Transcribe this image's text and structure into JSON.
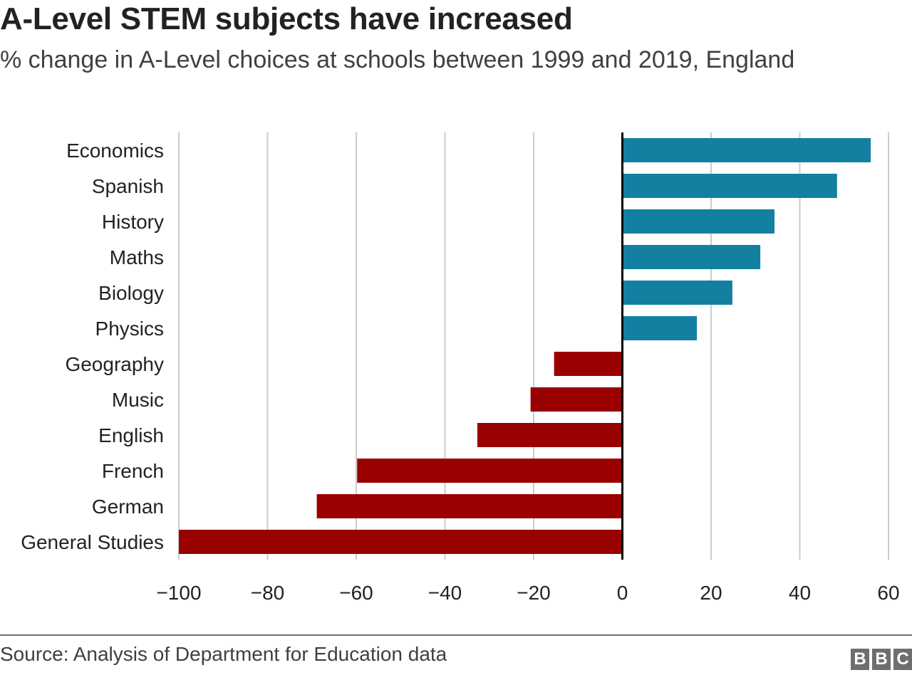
{
  "chart_data": {
    "type": "bar",
    "orientation": "horizontal",
    "title": "A-Level STEM subjects have increased",
    "subtitle": "% change in A-Level choices at schools between 1999 and 2019, England",
    "xlabel": "",
    "ylabel": "",
    "xlim": [
      -100,
      60
    ],
    "xticks": [
      -100,
      -80,
      -60,
      -40,
      -20,
      0,
      20,
      40,
      60
    ],
    "xtick_labels": [
      "−100",
      "−80",
      "−60",
      "−40",
      "−20",
      "0",
      "20",
      "40",
      "60"
    ],
    "grid": true,
    "categories": [
      "Economics",
      "Spanish",
      "History",
      "Maths",
      "Biology",
      "Physics",
      "Geography",
      "Music",
      "English",
      "French",
      "German",
      "General Studies"
    ],
    "values": [
      56,
      48.4,
      34.3,
      31.1,
      24.8,
      16.8,
      -15.4,
      -20.7,
      -32.7,
      -59.8,
      -68.9,
      -100
    ],
    "colors": {
      "positive": "#1380a1",
      "negative": "#990000",
      "grid": "#cbcbcb",
      "zero_line": "#000000"
    },
    "source": "Source: Analysis of Department for Education data"
  },
  "branding": {
    "logo_letters": [
      "B",
      "B",
      "C"
    ]
  }
}
